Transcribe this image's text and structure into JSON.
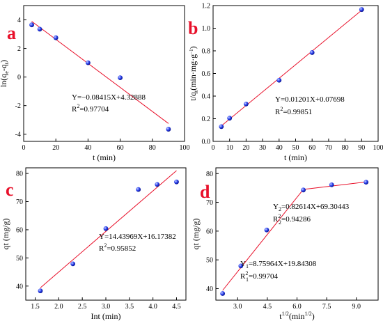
{
  "chart_data": [
    {
      "type": "scatter",
      "panel_label": "a",
      "xlabel": "t (min)",
      "ylabel_parts": [
        "ln(q",
        "e",
        "-q",
        "t",
        ")"
      ],
      "xlim": [
        0,
        100
      ],
      "ylim": [
        -4.5,
        5
      ],
      "xticks": [
        0,
        20,
        40,
        60,
        80,
        100
      ],
      "yticks": [
        -4,
        -2,
        0,
        2,
        4
      ],
      "x": [
        5,
        10,
        20,
        40,
        60,
        90
      ],
      "y": [
        3.65,
        3.35,
        2.75,
        1.0,
        -0.05,
        -3.65
      ],
      "fit_line": {
        "x": [
          5,
          90
        ],
        "y": [
          3.9,
          -3.25
        ]
      },
      "equation": "Y=−0.08415X+4.32888",
      "r2_label": "R",
      "r2_sup": "2",
      "r2_value": "=0.97704"
    },
    {
      "type": "scatter",
      "panel_label": "b",
      "xlabel": "t (min)",
      "ylabel_parts": [
        "t/q",
        "t",
        "(min·mg·g",
        "−1",
        ")"
      ],
      "xlim": [
        0,
        100
      ],
      "ylim": [
        0,
        1.2
      ],
      "xticks": [
        0,
        10,
        20,
        30,
        40,
        50,
        60,
        70,
        80,
        90,
        100
      ],
      "yticks": [
        0.0,
        0.2,
        0.4,
        0.6,
        0.8,
        1.0,
        1.2
      ],
      "ytick_labels": [
        "0.0",
        "0.2",
        "0.4",
        "0.6",
        "0.8",
        "1.0",
        "1.2"
      ],
      "x": [
        5,
        10,
        20,
        40,
        60,
        90
      ],
      "y": [
        0.13,
        0.205,
        0.33,
        0.54,
        0.785,
        1.165
      ],
      "fit_line": {
        "x": [
          5,
          90
        ],
        "y": [
          0.137,
          1.158
        ]
      },
      "equation": "Y=0.01201X+0.07698",
      "r2_label": "R",
      "r2_sup": "2",
      "r2_value": "=0.99851"
    },
    {
      "type": "scatter",
      "panel_label": "c",
      "xlabel": "Int (min)",
      "ylabel": "qt  (mg/g)",
      "xlim": [
        1.3,
        4.7
      ],
      "ylim": [
        35,
        82
      ],
      "xticks": [
        1.5,
        2.0,
        2.5,
        3.0,
        3.5,
        4.0,
        4.5
      ],
      "xtick_labels": [
        "1.5",
        "2.0",
        "2.5",
        "3.0",
        "3.5",
        "4.0",
        "4.5"
      ],
      "yticks": [
        40,
        50,
        60,
        70,
        80
      ],
      "x": [
        1.61,
        2.3,
        3.0,
        3.69,
        4.09,
        4.5
      ],
      "y": [
        38.3,
        47.9,
        60.4,
        74.3,
        76.1,
        77.0
      ],
      "fit_line": {
        "x": [
          1.61,
          4.5
        ],
        "y": [
          39.4,
          81.0
        ]
      },
      "equation": "Y=14.43969X+16.17382",
      "r2_label": "R",
      "r2_sup": "2",
      "r2_value": "=0.95852"
    },
    {
      "type": "scatter",
      "panel_label": "d",
      "xlabel_parts": [
        "t",
        "1/2",
        "(min",
        "1/2",
        ")"
      ],
      "ylabel": "qt (mg/g)",
      "xlim": [
        1.9,
        10.1
      ],
      "ylim": [
        36,
        82
      ],
      "xticks": [
        3.0,
        4.5,
        6.0,
        7.5,
        9.0
      ],
      "xtick_labels": [
        "3.0",
        "4.5",
        "6.0",
        "7.5",
        "9.0"
      ],
      "yticks": [
        40,
        50,
        60,
        70,
        80
      ],
      "x": [
        2.24,
        3.16,
        4.47,
        6.32,
        7.75,
        9.49
      ],
      "y": [
        38.3,
        47.9,
        60.4,
        74.3,
        76.1,
        77.0
      ],
      "fit_line": {
        "x": [
          2.24,
          6.32,
          9.49
        ],
        "y": [
          39.4,
          74.5,
          77.1
        ]
      },
      "equations": [
        {
          "main": "Y",
          "sub": "2",
          "rest": "=0.82614X+69.30443",
          "r_label": "R",
          "r_sup": "2",
          "r_sub": "2",
          "r_value": "=0.94286"
        },
        {
          "main": "Y",
          "sub": "1",
          "rest": "=8.75964X+19.84308",
          "r_label": "R",
          "r_sup": "2",
          "r_sub": "1",
          "r_value": "=0.99704"
        }
      ]
    }
  ],
  "colors": {
    "point_fill": "#1a30e0",
    "point_highlight": "#c8d4ff",
    "fit_line": "#e8102a",
    "panel_label": "#e8102a"
  }
}
